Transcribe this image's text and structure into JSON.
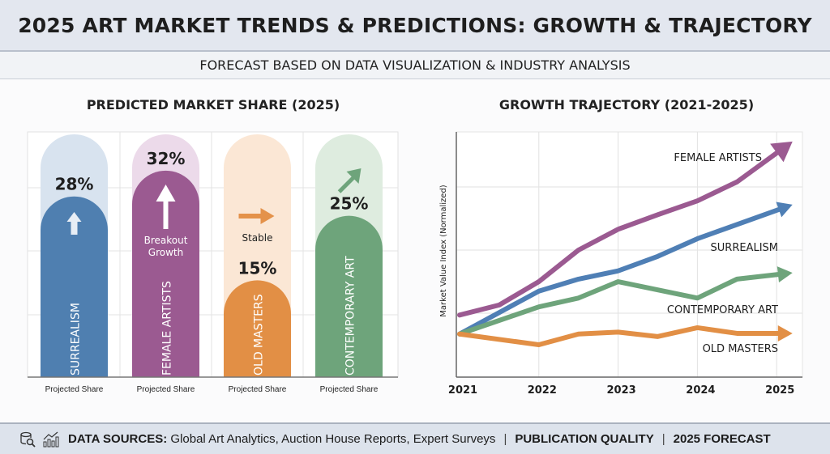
{
  "header": {
    "title": "2025 ART MARKET TRENDS & PREDICTIONS: GROWTH & TRAJECTORY",
    "subtitle": "FORECAST BASED ON DATA VISUALIZATION & INDUSTRY ANALYSIS"
  },
  "chart_data": [
    {
      "type": "bar",
      "title": "PREDICTED MARKET SHARE (2025)",
      "categories": [
        "SURREALISM",
        "FEMALE ARTISTS",
        "OLD MASTERS",
        "CONTEMPORARY ART"
      ],
      "values": [
        28,
        32,
        15,
        25
      ],
      "value_labels": [
        "28%",
        "32%",
        "15%",
        "25%"
      ],
      "xlabels": [
        "Projected Share",
        "Projected Share",
        "Projected Share",
        "Projected Share"
      ],
      "annotations": [
        "",
        "Breakout Growth",
        "Stable",
        ""
      ],
      "icons": [
        "up-arrow-icon",
        "big-up-arrow-icon",
        "right-arrow-icon",
        "diagonal-up-arrow-icon"
      ],
      "colors": [
        "#4f7fb0",
        "#9b5a91",
        "#e28f45",
        "#6ea47b"
      ],
      "track_colors": [
        "#d8e3ef",
        "#ecdaea",
        "#fbe7d5",
        "#deecdf"
      ],
      "ylim": [
        0,
        38
      ],
      "grid": true
    },
    {
      "type": "line",
      "title": "GROWTH TRAJECTORY (2021-2025)",
      "xlabel": "",
      "ylabel": "Market Value Index (Normalized)",
      "xticks": [
        "2021",
        "2022",
        "2023",
        "2024",
        "2025"
      ],
      "xlim": [
        2021,
        2025.3
      ],
      "ylim": [
        0,
        3.9
      ],
      "grid": true,
      "series": [
        {
          "name": "FEMALE ARTISTS",
          "color": "#9b5a91",
          "x": [
            2021,
            2021.5,
            2022,
            2022.5,
            2023,
            2023.5,
            2024,
            2024.5,
            2025.2
          ],
          "y": [
            0.97,
            1.13,
            1.5,
            2.0,
            2.33,
            2.56,
            2.78,
            3.08,
            3.72
          ]
        },
        {
          "name": "SURREALISM",
          "color": "#4f7fb5",
          "x": [
            2021,
            2022,
            2022.5,
            2023,
            2023.5,
            2024,
            2025.2
          ],
          "y": [
            0.67,
            1.35,
            1.54,
            1.67,
            1.9,
            2.18,
            2.72
          ]
        },
        {
          "name": "CONTEMPORARY ART",
          "color": "#6ea47b",
          "x": [
            2021,
            2022,
            2022.5,
            2023,
            2024,
            2024.5,
            2025.2
          ],
          "y": [
            0.67,
            1.1,
            1.24,
            1.5,
            1.24,
            1.54,
            1.64
          ]
        },
        {
          "name": "OLD MASTERS",
          "color": "#e28f45",
          "x": [
            2021,
            2022,
            2022.5,
            2023,
            2023.5,
            2024,
            2024.5,
            2025.2
          ],
          "y": [
            0.67,
            0.5,
            0.67,
            0.7,
            0.63,
            0.77,
            0.68,
            0.68
          ]
        }
      ]
    }
  ],
  "footer": {
    "icons": [
      "database-search-icon",
      "bar-chart-trend-icon"
    ],
    "sources_label": "DATA SOURCES:",
    "sources_text": "Global Art Analytics, Auction House Reports, Expert Surveys",
    "quality": "PUBLICATION QUALITY",
    "forecast": "2025 FORECAST",
    "separator": "|"
  }
}
